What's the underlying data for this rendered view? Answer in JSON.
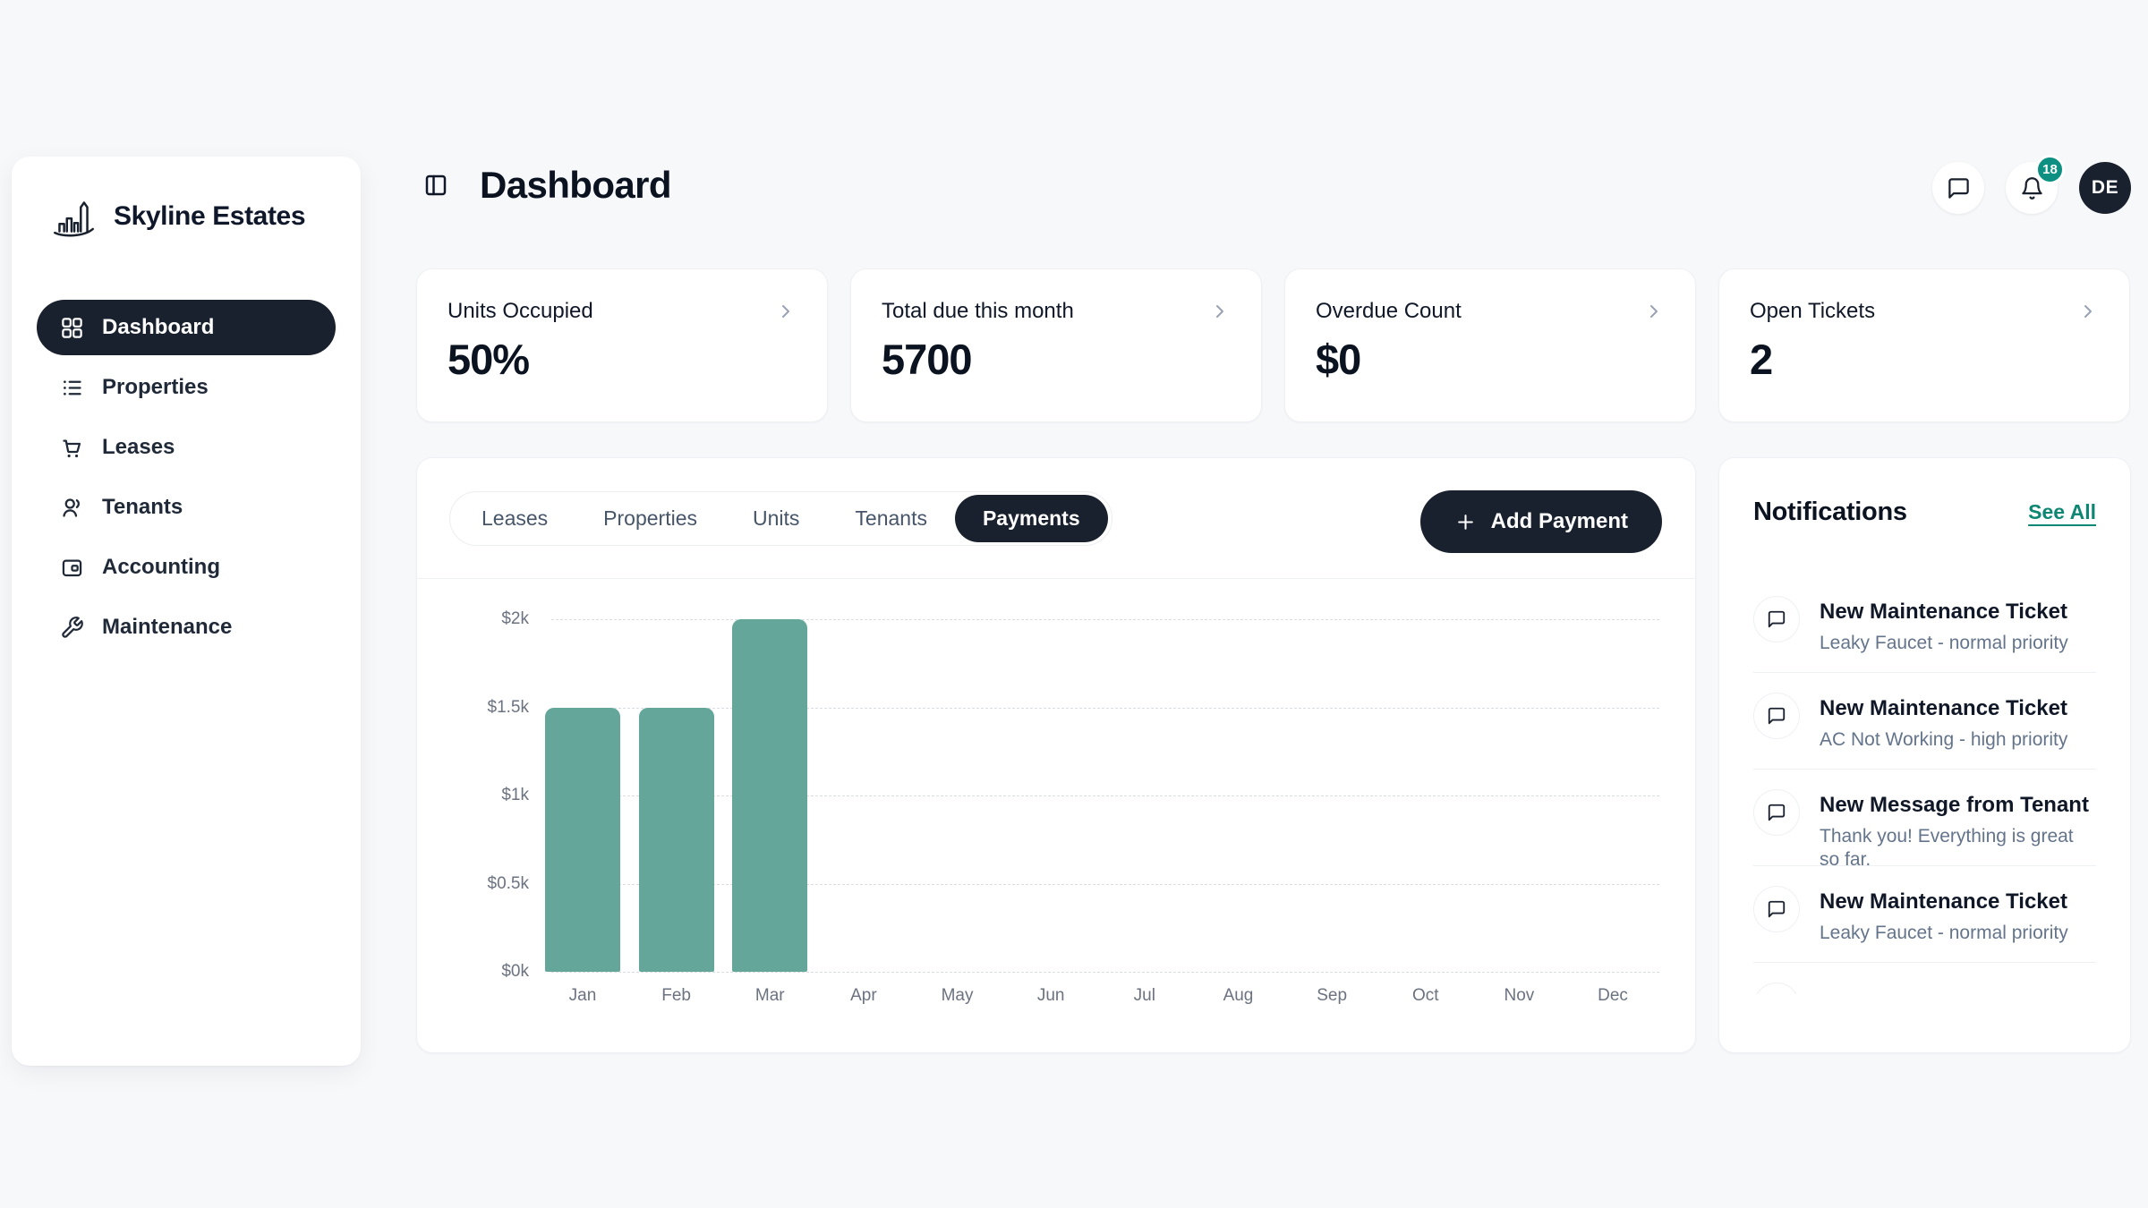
{
  "brand": {
    "name": "Skyline Estates"
  },
  "sidebar": {
    "items": [
      {
        "label": "Dashboard",
        "icon": "grid-icon",
        "active": true
      },
      {
        "label": "Properties",
        "icon": "list-icon",
        "active": false
      },
      {
        "label": "Leases",
        "icon": "cart-icon",
        "active": false
      },
      {
        "label": "Tenants",
        "icon": "users-icon",
        "active": false
      },
      {
        "label": "Accounting",
        "icon": "wallet-icon",
        "active": false
      },
      {
        "label": "Maintenance",
        "icon": "wrench-icon",
        "active": false
      }
    ]
  },
  "header": {
    "title": "Dashboard",
    "notification_count": "18",
    "avatar_initials": "DE"
  },
  "stat_cards": [
    {
      "label": "Units Occupied",
      "value": "50%"
    },
    {
      "label": "Total due this month",
      "value": "5700"
    },
    {
      "label": "Overdue Count",
      "value": "$0"
    },
    {
      "label": "Open Tickets",
      "value": "2"
    }
  ],
  "tabs": {
    "items": [
      {
        "label": "Leases"
      },
      {
        "label": "Properties"
      },
      {
        "label": "Units"
      },
      {
        "label": "Tenants"
      },
      {
        "label": "Payments"
      }
    ],
    "active": "Payments"
  },
  "toolbar": {
    "add_payment_label": "Add Payment"
  },
  "chart_data": {
    "type": "bar",
    "title": "",
    "xlabel": "",
    "ylabel": "",
    "categories": [
      "Jan",
      "Feb",
      "Mar",
      "Apr",
      "May",
      "Jun",
      "Jul",
      "Aug",
      "Sep",
      "Oct",
      "Nov",
      "Dec"
    ],
    "values": [
      1500,
      1500,
      2000,
      0,
      0,
      0,
      0,
      0,
      0,
      0,
      0,
      0
    ],
    "yticks": [
      "$0k",
      "$0.5k",
      "$1k",
      "$1.5k",
      "$2k"
    ],
    "ylim": [
      0,
      2000
    ],
    "grid": "horizontal-dashed",
    "legend": "none",
    "bar_color": "#64a79a"
  },
  "notifications": {
    "title": "Notifications",
    "see_all_label": "See All",
    "items": [
      {
        "title": "New Maintenance Ticket",
        "subtitle": "Leaky Faucet - normal priority"
      },
      {
        "title": "New Maintenance Ticket",
        "subtitle": "AC Not Working - high priority"
      },
      {
        "title": "New Message from Tenant",
        "subtitle": "Thank you! Everything is great so far."
      },
      {
        "title": "New Maintenance Ticket",
        "subtitle": "Leaky Faucet - normal priority"
      }
    ]
  },
  "colors": {
    "background": "#f7f8fa",
    "dark": "#1a212e",
    "bar_teal": "#64a79a",
    "badge_teal": "#0d9082",
    "link_teal": "#0e8674",
    "muted_text": "#64748b"
  }
}
